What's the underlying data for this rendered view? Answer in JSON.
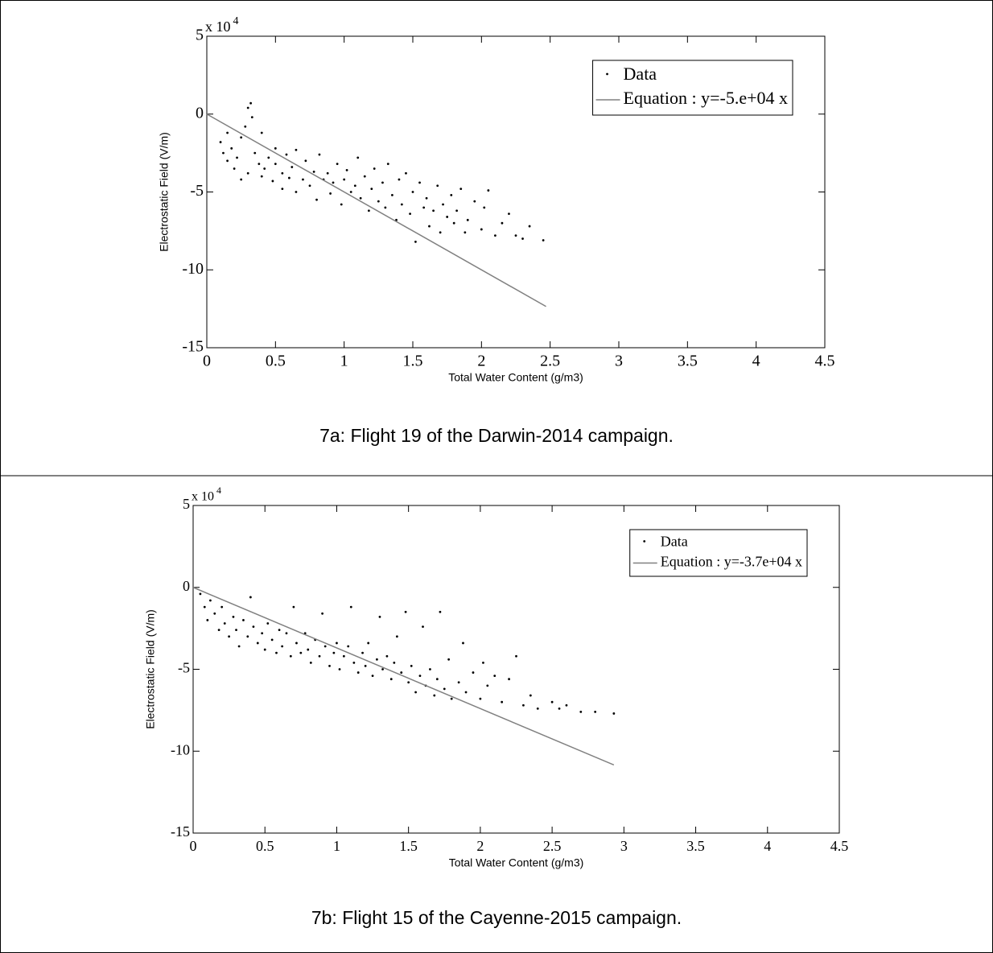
{
  "chart_data": [
    {
      "type": "scatter",
      "ylabel": "Electrostatic Field (V/m)",
      "xlabel": "Total Water Content (g/m3)",
      "y_scale_label": {
        "base": "x 10",
        "exponent": "4"
      },
      "xlim": [
        0,
        4.5
      ],
      "ylim": [
        -15,
        5
      ],
      "xticks": [
        0,
        0.5,
        1,
        1.5,
        2,
        2.5,
        3,
        3.5,
        4,
        4.5
      ],
      "yticks": [
        -15,
        -10,
        -5,
        0,
        5
      ],
      "legend": "upper right",
      "series": [
        {
          "name": "Data",
          "color": "#000000",
          "mode": "markers",
          "x": [
            0.1,
            0.12,
            0.15,
            0.15,
            0.18,
            0.2,
            0.22,
            0.25,
            0.25,
            0.28,
            0.3,
            0.32,
            0.33,
            0.3,
            0.35,
            0.38,
            0.4,
            0.4,
            0.42,
            0.45,
            0.48,
            0.5,
            0.5,
            0.55,
            0.55,
            0.58,
            0.6,
            0.62,
            0.65,
            0.65,
            0.7,
            0.72,
            0.75,
            0.78,
            0.8,
            0.82,
            0.85,
            0.88,
            0.9,
            0.92,
            0.95,
            0.98,
            1.0,
            1.02,
            1.05,
            1.08,
            1.1,
            1.12,
            1.15,
            1.18,
            1.2,
            1.22,
            1.25,
            1.28,
            1.3,
            1.32,
            1.35,
            1.38,
            1.4,
            1.42,
            1.45,
            1.48,
            1.5,
            1.52,
            1.55,
            1.58,
            1.6,
            1.62,
            1.65,
            1.68,
            1.7,
            1.72,
            1.75,
            1.78,
            1.8,
            1.82,
            1.85,
            1.88,
            1.9,
            1.95,
            2.0,
            2.02,
            2.05,
            2.1,
            2.15,
            2.2,
            2.25,
            2.3,
            2.35,
            2.45
          ],
          "values": [
            -1.8,
            -2.5,
            -3,
            -1.2,
            -2.2,
            -3.5,
            -2.8,
            -1.5,
            -4.2,
            -0.8,
            0.4,
            0.7,
            -0.2,
            -3.8,
            -2.5,
            -3.2,
            -1.2,
            -4,
            -3.5,
            -2.8,
            -4.3,
            -3.2,
            -2.2,
            -3.8,
            -4.8,
            -2.6,
            -4.1,
            -3.4,
            -2.3,
            -5,
            -4.2,
            -3,
            -4.6,
            -3.7,
            -5.5,
            -2.6,
            -4.2,
            -3.8,
            -5.1,
            -4.4,
            -3.2,
            -5.8,
            -4.2,
            -3.6,
            -5,
            -4.6,
            -2.8,
            -5.4,
            -4,
            -6.2,
            -4.8,
            -3.5,
            -5.6,
            -4.4,
            -6,
            -3.2,
            -5.2,
            -6.8,
            -4.2,
            -5.8,
            -3.8,
            -6.4,
            -5,
            -8.2,
            -4.4,
            -6,
            -5.4,
            -7.2,
            -6.2,
            -4.6,
            -7.6,
            -5.8,
            -6.6,
            -5.2,
            -7,
            -6.2,
            -4.8,
            -7.6,
            -6.8,
            -5.6,
            -7.4,
            -6,
            -4.9,
            -7.8,
            -7,
            -6.4,
            -7.8,
            -8,
            -7.2,
            -8.1
          ]
        },
        {
          "name": "Equation : y=-5.e+04 x",
          "color": "#808080",
          "mode": "line",
          "x": [
            0,
            2.47
          ],
          "values": [
            0,
            -12.35
          ]
        }
      ],
      "caption": "7a: Flight 19 of the Darwin-2014 campaign."
    },
    {
      "type": "scatter",
      "ylabel": "Electrostatic Field (V/m)",
      "xlabel": "Total Water Content (g/m3)",
      "y_scale_label": {
        "base": "x 10",
        "exponent": "4"
      },
      "xlim": [
        0,
        4.5
      ],
      "ylim": [
        -15,
        5
      ],
      "xticks": [
        0,
        0.5,
        1,
        1.5,
        2,
        2.5,
        3,
        3.5,
        4,
        4.5
      ],
      "yticks": [
        -15,
        -10,
        -5,
        0,
        5
      ],
      "legend": "upper right",
      "series": [
        {
          "name": "Data",
          "color": "#000000",
          "mode": "markers",
          "x": [
            0.05,
            0.08,
            0.1,
            0.12,
            0.15,
            0.18,
            0.2,
            0.22,
            0.25,
            0.28,
            0.3,
            0.32,
            0.35,
            0.38,
            0.4,
            0.42,
            0.45,
            0.48,
            0.5,
            0.52,
            0.55,
            0.58,
            0.6,
            0.62,
            0.65,
            0.68,
            0.7,
            0.72,
            0.75,
            0.78,
            0.8,
            0.82,
            0.85,
            0.88,
            0.9,
            0.92,
            0.95,
            0.98,
            1.0,
            1.02,
            1.05,
            1.08,
            1.1,
            1.12,
            1.15,
            1.18,
            1.2,
            1.22,
            1.25,
            1.28,
            1.3,
            1.32,
            1.35,
            1.38,
            1.4,
            1.42,
            1.45,
            1.48,
            1.5,
            1.52,
            1.55,
            1.58,
            1.6,
            1.62,
            1.65,
            1.68,
            1.7,
            1.72,
            1.75,
            1.78,
            1.8,
            1.85,
            1.88,
            1.9,
            1.95,
            2.0,
            2.02,
            2.05,
            2.1,
            2.15,
            2.2,
            2.25,
            2.3,
            2.35,
            2.4,
            2.5,
            2.55,
            2.6,
            2.7,
            2.8,
            2.93
          ],
          "values": [
            -0.4,
            -1.2,
            -2,
            -0.8,
            -1.6,
            -2.6,
            -1.2,
            -2.2,
            -3,
            -1.8,
            -2.6,
            -3.6,
            -2,
            -3,
            -0.6,
            -2.4,
            -3.4,
            -2.8,
            -3.8,
            -2.2,
            -3.2,
            -4,
            -2.6,
            -3.6,
            -2.8,
            -4.2,
            -1.2,
            -3.4,
            -4,
            -2.8,
            -3.8,
            -4.6,
            -3.2,
            -4.2,
            -1.6,
            -3.6,
            -4.8,
            -4,
            -3.4,
            -5,
            -4.2,
            -3.6,
            -1.2,
            -4.6,
            -5.2,
            -4,
            -4.8,
            -3.4,
            -5.4,
            -4.4,
            -1.8,
            -5,
            -4.2,
            -5.6,
            -4.6,
            -3,
            -5.2,
            -1.5,
            -5.8,
            -4.8,
            -6.4,
            -5.4,
            -2.4,
            -6,
            -5,
            -6.6,
            -5.6,
            -1.5,
            -6.2,
            -4.4,
            -6.8,
            -5.8,
            -3.4,
            -6.4,
            -5.2,
            -6.8,
            -4.6,
            -6,
            -5.4,
            -7,
            -5.6,
            -4.2,
            -7.2,
            -6.6,
            -7.4,
            -7,
            -7.4,
            -7.2,
            -7.6,
            -7.6,
            -7.7
          ]
        },
        {
          "name": "Equation : y=-3.7e+04 x",
          "color": "#808080",
          "mode": "line",
          "x": [
            0,
            2.93
          ],
          "values": [
            0,
            -10.84
          ]
        }
      ],
      "caption": "7b: Flight 15 of the Cayenne-2015 campaign."
    }
  ]
}
